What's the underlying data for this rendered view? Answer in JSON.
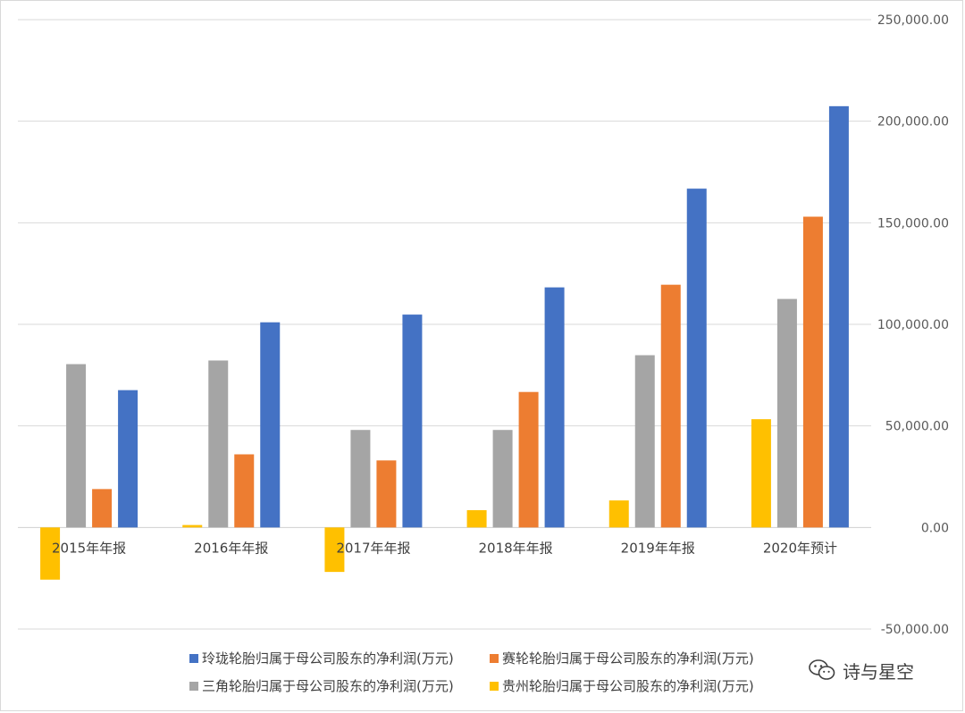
{
  "chart_data": {
    "type": "bar",
    "categories": [
      "2015年年报",
      "2016年年报",
      "2017年年报",
      "2018年年报",
      "2019年年报",
      "2020年预计"
    ],
    "series": [
      {
        "name": "贵州轮胎归属于母公司股东的净利润(万元)",
        "color": "#ffc000",
        "values": [
          -25700,
          1200,
          -21900,
          8500,
          13300,
          53300
        ]
      },
      {
        "name": "三角轮胎归属于母公司股东的净利润(万元)",
        "color": "#a5a5a5",
        "values": [
          80400,
          82200,
          48000,
          48000,
          84800,
          112500
        ]
      },
      {
        "name": "赛轮轮胎归属于母公司股东的净利润(万元)",
        "color": "#ed7d31",
        "values": [
          18900,
          36000,
          33000,
          66700,
          119500,
          153000
        ]
      },
      {
        "name": "玲珑轮胎归属于母公司股东的净利润(万元)",
        "color": "#4472c4",
        "values": [
          67600,
          101000,
          104800,
          118200,
          166800,
          207400
        ]
      }
    ],
    "ylim": [
      -50000,
      250000
    ],
    "yticks": [
      "250,000.00",
      "200,000.00",
      "150,000.00",
      "100,000.00",
      "50,000.00",
      "0.00",
      "-50,000.00"
    ],
    "ytick_values": [
      250000,
      200000,
      150000,
      100000,
      50000,
      0,
      -50000
    ],
    "legend_order": [
      3,
      2,
      1,
      0
    ],
    "legend_position": "bottom",
    "grid": true
  },
  "watermark": {
    "text": "诗与星空",
    "icon": "wechat-icon"
  }
}
